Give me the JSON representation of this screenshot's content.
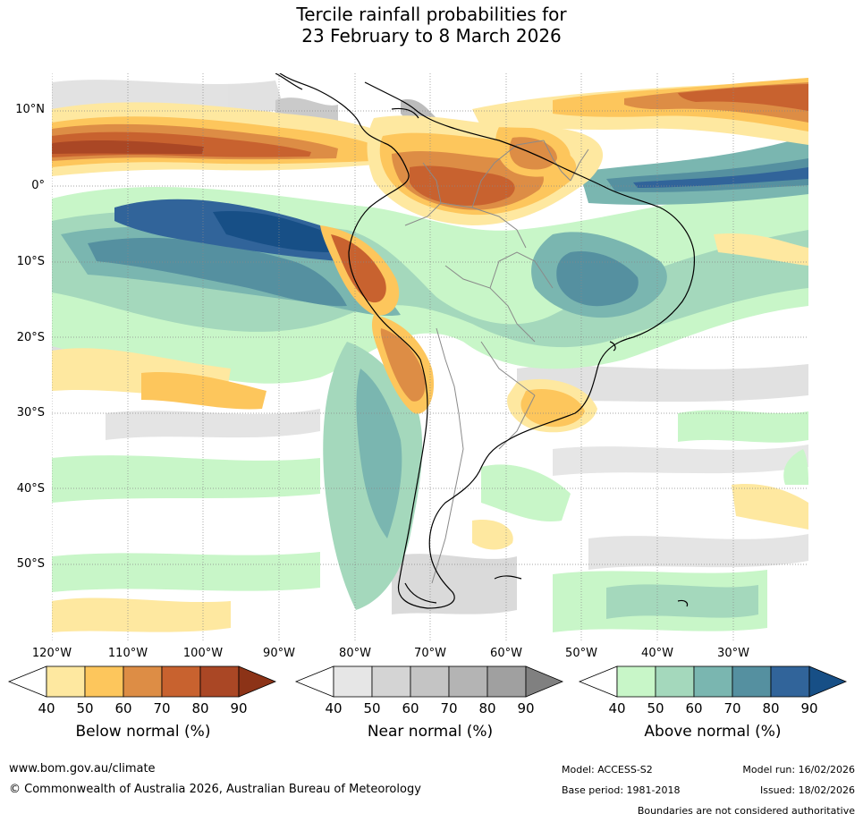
{
  "title": {
    "line1": "Tercile rainfall probabilities for",
    "line2": "23 February to 8 March 2026"
  },
  "map": {
    "lat_labels": [
      "10°N",
      "0°",
      "10°S",
      "20°S",
      "30°S",
      "40°S",
      "50°S"
    ],
    "lon_labels": [
      "120°W",
      "110°W",
      "100°W",
      "90°W",
      "80°W",
      "70°W",
      "60°W",
      "50°W",
      "40°W",
      "30°W"
    ]
  },
  "colorbars": {
    "below": {
      "label": "Below normal (%)",
      "ticks": [
        "40",
        "50",
        "60",
        "70",
        "80",
        "90"
      ],
      "colors": [
        "#ffffff",
        "#fee8a0",
        "#fdc65c",
        "#dd8d45",
        "#c8622f",
        "#aa4725",
        "#8c3317"
      ]
    },
    "near": {
      "label": "Near normal (%)",
      "ticks": [
        "40",
        "50",
        "60",
        "70",
        "80",
        "90"
      ],
      "colors": [
        "#ffffff",
        "#e6e6e6",
        "#d4d4d4",
        "#c4c4c4",
        "#b4b4b4",
        "#a0a0a0",
        "#808080"
      ]
    },
    "above": {
      "label": "Above normal (%)",
      "ticks": [
        "40",
        "50",
        "60",
        "70",
        "80",
        "90"
      ],
      "colors": [
        "#ffffff",
        "#c8f6c8",
        "#a4d8bc",
        "#7ab6b0",
        "#5590a0",
        "#31649a",
        "#174f86"
      ]
    }
  },
  "footer": {
    "website": "www.bom.gov.au/climate",
    "copyright": "© Commonwealth of Australia 2026, Australian Bureau of Meteorology",
    "model": "Model: ACCESS-S2",
    "model_run": "Model run: 16/02/2026",
    "base_period": "Base period: 1981-2018",
    "issued": "Issued: 18/02/2026",
    "boundaries": "Boundaries are not considered authoritative"
  }
}
